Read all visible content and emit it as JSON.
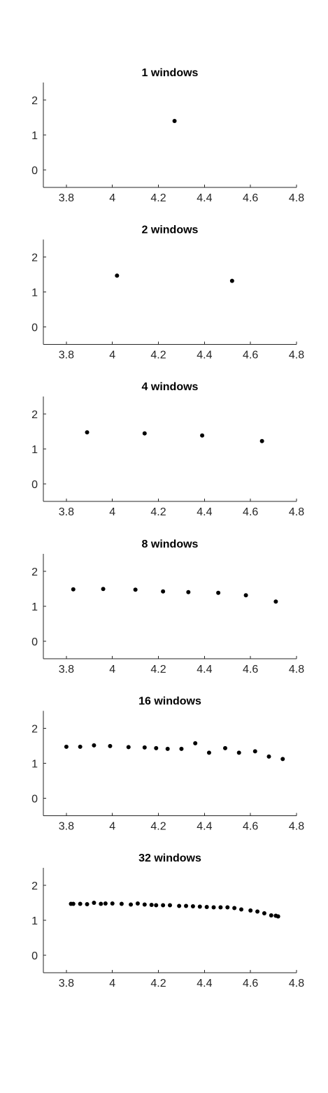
{
  "chart_data": [
    {
      "type": "scatter",
      "title": "1 windows",
      "xlim": [
        3.7,
        4.8
      ],
      "ylim": [
        -0.5,
        2.5
      ],
      "xticks": [
        "3.8",
        "4",
        "4.2",
        "4.4",
        "4.6",
        "4.8"
      ],
      "yticks": [
        "0",
        "1",
        "2"
      ],
      "grid": false,
      "series": [
        {
          "x": [
            4.27
          ],
          "y": [
            1.4
          ]
        }
      ]
    },
    {
      "type": "scatter",
      "title": "2 windows",
      "xlim": [
        3.7,
        4.8
      ],
      "ylim": [
        -0.5,
        2.5
      ],
      "xticks": [
        "3.8",
        "4",
        "4.2",
        "4.4",
        "4.6",
        "4.8"
      ],
      "yticks": [
        "0",
        "1",
        "2"
      ],
      "grid": false,
      "series": [
        {
          "x": [
            4.02,
            4.52
          ],
          "y": [
            1.47,
            1.32
          ]
        }
      ]
    },
    {
      "type": "scatter",
      "title": "4 windows",
      "xlim": [
        3.7,
        4.8
      ],
      "ylim": [
        -0.5,
        2.5
      ],
      "xticks": [
        "3.8",
        "4",
        "4.2",
        "4.4",
        "4.6",
        "4.8"
      ],
      "yticks": [
        "0",
        "1",
        "2"
      ],
      "grid": false,
      "series": [
        {
          "x": [
            3.89,
            4.14,
            4.39,
            4.65
          ],
          "y": [
            1.48,
            1.45,
            1.39,
            1.23
          ]
        }
      ]
    },
    {
      "type": "scatter",
      "title": "8 windows",
      "xlim": [
        3.7,
        4.8
      ],
      "ylim": [
        -0.5,
        2.5
      ],
      "xticks": [
        "3.8",
        "4",
        "4.2",
        "4.4",
        "4.6",
        "4.8"
      ],
      "yticks": [
        "0",
        "1",
        "2"
      ],
      "grid": false,
      "series": [
        {
          "x": [
            3.83,
            3.96,
            4.1,
            4.22,
            4.33,
            4.46,
            4.58,
            4.71
          ],
          "y": [
            1.48,
            1.49,
            1.47,
            1.42,
            1.4,
            1.38,
            1.31,
            1.13
          ]
        }
      ]
    },
    {
      "type": "scatter",
      "title": "16 windows",
      "xlim": [
        3.7,
        4.8
      ],
      "ylim": [
        -0.5,
        2.5
      ],
      "xticks": [
        "3.8",
        "4",
        "4.2",
        "4.4",
        "4.6",
        "4.8"
      ],
      "yticks": [
        "0",
        "1",
        "2"
      ],
      "grid": false,
      "series": [
        {
          "x": [
            3.8,
            3.86,
            3.92,
            3.99,
            4.07,
            4.14,
            4.19,
            4.24,
            4.3,
            4.36,
            4.42,
            4.49,
            4.55,
            4.62,
            4.68,
            4.74
          ],
          "y": [
            1.47,
            1.47,
            1.51,
            1.49,
            1.46,
            1.45,
            1.43,
            1.41,
            1.41,
            1.57,
            1.3,
            1.43,
            1.3,
            1.34,
            1.19,
            1.12
          ]
        }
      ]
    },
    {
      "type": "scatter",
      "title": "32 windows",
      "xlim": [
        3.7,
        4.8
      ],
      "ylim": [
        -0.5,
        2.5
      ],
      "xticks": [
        "3.8",
        "4",
        "4.2",
        "4.4",
        "4.6",
        "4.8"
      ],
      "yticks": [
        "0",
        "1",
        "2"
      ],
      "grid": false,
      "series": [
        {
          "x": [
            3.82,
            3.83,
            3.86,
            3.89,
            3.92,
            3.95,
            3.97,
            4.0,
            4.04,
            4.08,
            4.11,
            4.14,
            4.17,
            4.19,
            4.22,
            4.25,
            4.29,
            4.32,
            4.35,
            4.38,
            4.41,
            4.44,
            4.47,
            4.5,
            4.53,
            4.56,
            4.6,
            4.63,
            4.66,
            4.69,
            4.71,
            4.72
          ],
          "y": [
            1.47,
            1.47,
            1.47,
            1.46,
            1.5,
            1.47,
            1.48,
            1.48,
            1.47,
            1.45,
            1.48,
            1.45,
            1.44,
            1.43,
            1.43,
            1.43,
            1.41,
            1.41,
            1.4,
            1.39,
            1.38,
            1.37,
            1.37,
            1.37,
            1.35,
            1.31,
            1.28,
            1.25,
            1.2,
            1.14,
            1.13,
            1.11
          ]
        }
      ]
    }
  ]
}
